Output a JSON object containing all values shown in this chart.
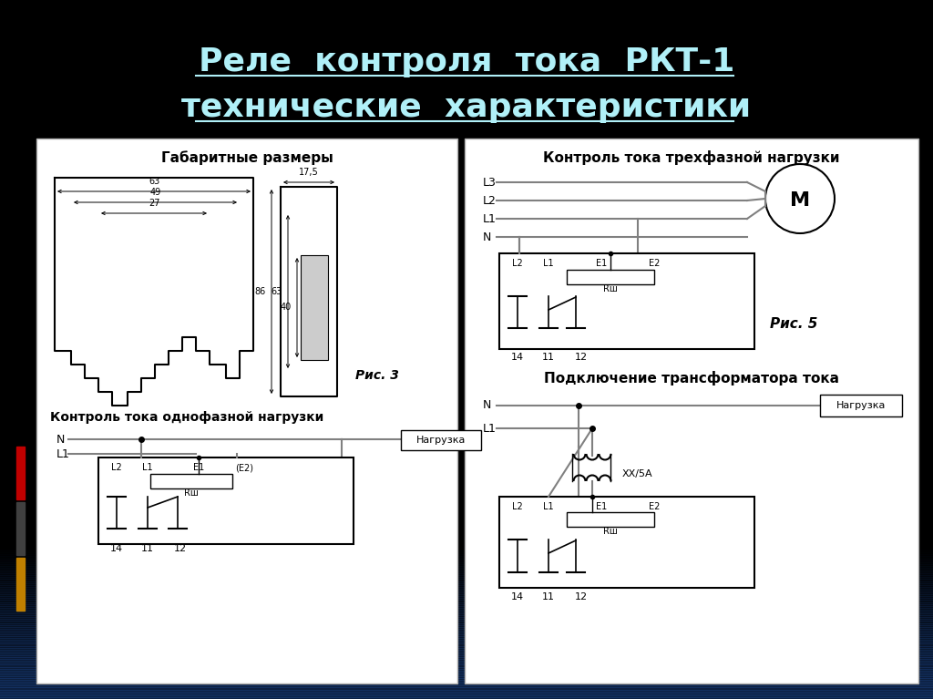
{
  "title_line1": "Реле  контроля  тока  РКТ-1",
  "title_line2": "технические  характеристики",
  "bg_color": "#000000",
  "title_color": "#b0f0f8",
  "white_panel": "#ffffff",
  "left_panel_title": "Габаритные размеры",
  "left_panel_subtitle": "Контроль тока однофазной нагрузки",
  "right_panel_title1": "Контроль тока трехфазной нагрузки",
  "right_panel_title2": "Подключение трансформатора тока",
  "fig3_label": "Рис. 3",
  "fig5_label": "Рис. 5",
  "nagruzka": "Нагрузка",
  "xx5a": "ХХ/5А",
  "rsh": "Rш",
  "motor_label": "М",
  "left_bar_colors": [
    "#c00000",
    "#404040",
    "#c08000"
  ],
  "wire_color": "#808080",
  "dim_color": "#000000"
}
